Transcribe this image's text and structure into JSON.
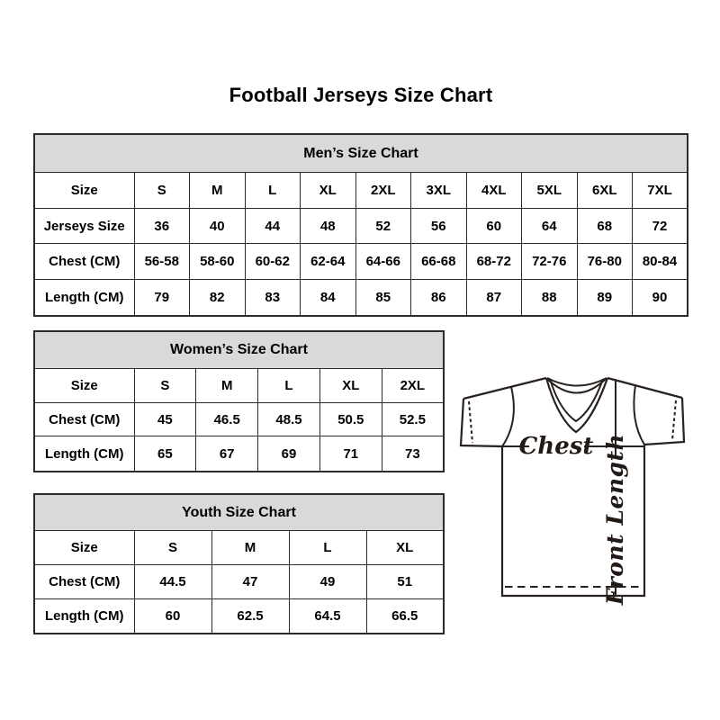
{
  "page": {
    "title": "Football Jerseys Size Chart"
  },
  "tables": {
    "men": {
      "header": "Men’s Size Chart",
      "rows": [
        [
          "Size",
          "S",
          "M",
          "L",
          "XL",
          "2XL",
          "3XL",
          "4XL",
          "5XL",
          "6XL",
          "7XL"
        ],
        [
          "Jerseys Size",
          "36",
          "40",
          "44",
          "48",
          "52",
          "56",
          "60",
          "64",
          "68",
          "72"
        ],
        [
          "Chest (CM)",
          "56-58",
          "58-60",
          "60-62",
          "62-64",
          "64-66",
          "66-68",
          "68-72",
          "72-76",
          "76-80",
          "80-84"
        ],
        [
          "Length (CM)",
          "79",
          "82",
          "83",
          "84",
          "85",
          "86",
          "87",
          "88",
          "89",
          "90"
        ]
      ]
    },
    "women": {
      "header": "Women’s Size Chart",
      "rows": [
        [
          "Size",
          "S",
          "M",
          "L",
          "XL",
          "2XL"
        ],
        [
          "Chest (CM)",
          "45",
          "46.5",
          "48.5",
          "50.5",
          "52.5"
        ],
        [
          "Length (CM)",
          "65",
          "67",
          "69",
          "71",
          "73"
        ]
      ]
    },
    "youth": {
      "header": "Youth Size Chart",
      "rows": [
        [
          "Size",
          "S",
          "M",
          "L",
          "XL"
        ],
        [
          "Chest (CM)",
          "44.5",
          "47",
          "49",
          "51"
        ],
        [
          "Length (CM)",
          "60",
          "62.5",
          "64.5",
          "66.5"
        ]
      ]
    }
  },
  "diagram": {
    "chest_label": "Chest",
    "front_length_label": "Front Length"
  },
  "colors": {
    "table_header_bg": "#d9d9d9",
    "table_border": "#2b2b2b",
    "text": "#000000",
    "diagram_line": "#29211e"
  }
}
